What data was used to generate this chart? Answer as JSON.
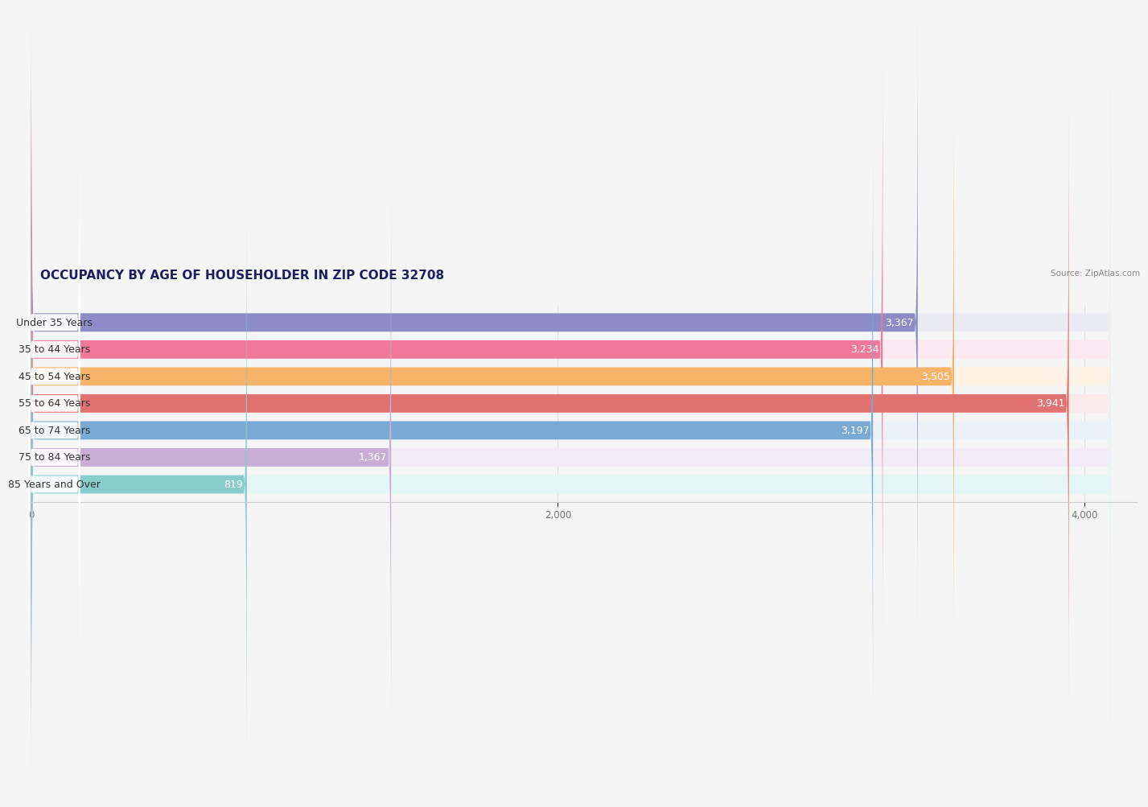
{
  "title": "OCCUPANCY BY AGE OF HOUSEHOLDER IN ZIP CODE 32708",
  "source": "Source: ZipAtlas.com",
  "categories": [
    "Under 35 Years",
    "35 to 44 Years",
    "45 to 54 Years",
    "55 to 64 Years",
    "65 to 74 Years",
    "75 to 84 Years",
    "85 Years and Over"
  ],
  "values": [
    3367,
    3234,
    3505,
    3941,
    3197,
    1367,
    819
  ],
  "bar_colors": [
    "#8b8cc8",
    "#f07899",
    "#f5b46a",
    "#e07272",
    "#7aaad4",
    "#c8add4",
    "#88cccc"
  ],
  "bar_bg_colors": [
    "#ebebf4",
    "#fceaf2",
    "#fdf2e4",
    "#faeaea",
    "#eaf2f8",
    "#f2ecf6",
    "#e4f6f6"
  ],
  "xlim_max": 4200,
  "data_max": 4100,
  "xticks": [
    0,
    2000,
    4000
  ],
  "xtick_labels": [
    "0",
    "2,000",
    "4,000"
  ],
  "background_color": "#f5f5f5",
  "title_fontsize": 11,
  "label_fontsize": 9,
  "value_fontsize": 9,
  "bar_height": 0.68,
  "bar_spacing": 1.0
}
